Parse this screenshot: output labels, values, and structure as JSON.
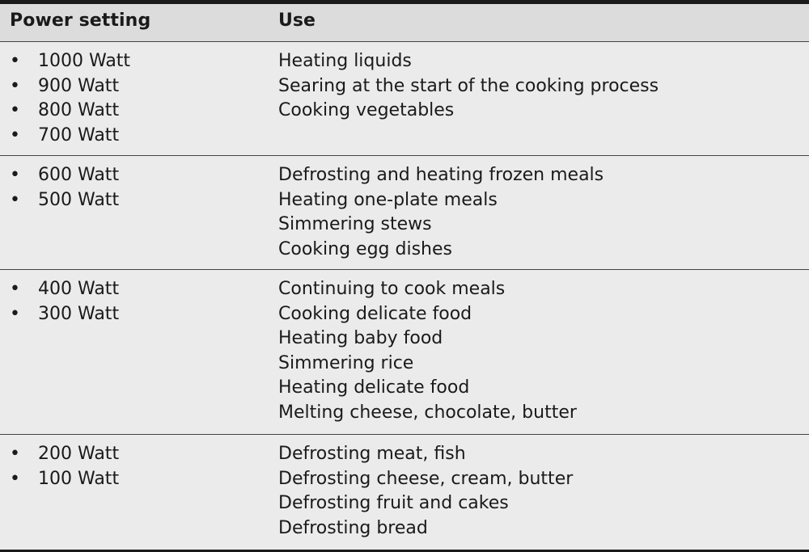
{
  "header": {
    "power_label": "Power setting",
    "use_label": "Use"
  },
  "rows": [
    {
      "power": [
        "1000 Watt",
        "900 Watt",
        "800 Watt",
        "700 Watt"
      ],
      "use": [
        "Heating liquids",
        "Searing at the start of the cooking process",
        "Cooking vegetables"
      ]
    },
    {
      "power": [
        "600 Watt",
        "500 Watt"
      ],
      "use": [
        "Defrosting and heating frozen meals",
        "Heating one-plate meals",
        "Simmering stews",
        "Cooking egg dishes"
      ]
    },
    {
      "power": [
        "400 Watt",
        "300 Watt"
      ],
      "use": [
        "Continuing to cook meals",
        "Cooking delicate food",
        "Heating baby food",
        "Simmering rice",
        "Heating delicate food",
        "Melting cheese, chocolate, butter"
      ]
    },
    {
      "power": [
        "200 Watt",
        "100 Watt"
      ],
      "use": [
        "Defrosting meat, fish",
        "Defrosting cheese, cream, butter",
        "Defrosting fruit and cakes",
        "Defrosting bread"
      ]
    }
  ],
  "bullet_glyph": "•"
}
